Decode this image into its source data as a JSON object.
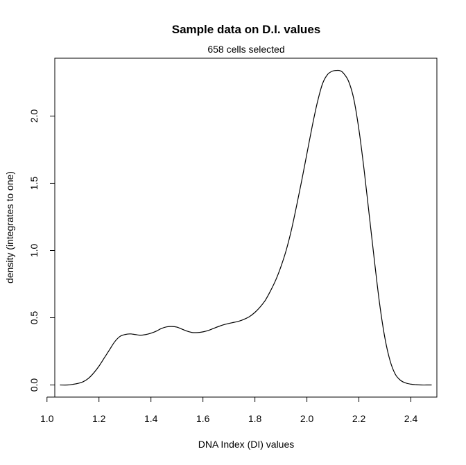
{
  "chart_data": {
    "type": "line",
    "title": "Sample data on D.I. values",
    "subtitle": "658 cells selected",
    "xlabel": "DNA Index (DI) values",
    "ylabel": "density (integrates to one)",
    "xlim": [
      1.03,
      2.5
    ],
    "ylim": [
      -0.09,
      2.43
    ],
    "x_ticks": [
      1.0,
      1.2,
      1.4,
      1.6,
      1.8,
      2.0,
      2.2,
      2.4
    ],
    "x_tick_labels": [
      "1.0",
      "1.2",
      "1.4",
      "1.6",
      "1.8",
      "2.0",
      "2.2",
      "2.4"
    ],
    "y_ticks": [
      0.0,
      0.5,
      1.0,
      1.5,
      2.0
    ],
    "y_tick_labels": [
      "0.0",
      "0.5",
      "1.0",
      "1.5",
      "2.0"
    ],
    "grid": false,
    "series": [
      {
        "x": [
          1.05,
          1.08,
          1.1,
          1.12,
          1.14,
          1.16,
          1.18,
          1.2,
          1.22,
          1.24,
          1.26,
          1.28,
          1.3,
          1.32,
          1.34,
          1.36,
          1.38,
          1.4,
          1.42,
          1.44,
          1.46,
          1.48,
          1.5,
          1.52,
          1.54,
          1.56,
          1.58,
          1.6,
          1.62,
          1.64,
          1.66,
          1.68,
          1.7,
          1.72,
          1.74,
          1.76,
          1.78,
          1.8,
          1.82,
          1.84,
          1.86,
          1.88,
          1.9,
          1.92,
          1.94,
          1.96,
          1.98,
          2.0,
          2.02,
          2.04,
          2.06,
          2.08,
          2.1,
          2.12,
          2.13,
          2.14,
          2.16,
          2.18,
          2.2,
          2.22,
          2.24,
          2.26,
          2.28,
          2.3,
          2.32,
          2.34,
          2.36,
          2.38,
          2.4,
          2.42,
          2.44,
          2.46,
          2.48
        ],
        "y": [
          0.0,
          0.0,
          0.005,
          0.012,
          0.025,
          0.05,
          0.09,
          0.14,
          0.2,
          0.26,
          0.32,
          0.36,
          0.375,
          0.38,
          0.375,
          0.37,
          0.375,
          0.385,
          0.4,
          0.42,
          0.432,
          0.435,
          0.43,
          0.415,
          0.4,
          0.39,
          0.39,
          0.395,
          0.405,
          0.42,
          0.435,
          0.448,
          0.458,
          0.466,
          0.475,
          0.49,
          0.51,
          0.54,
          0.58,
          0.63,
          0.7,
          0.78,
          0.88,
          1.0,
          1.15,
          1.33,
          1.52,
          1.72,
          1.92,
          2.1,
          2.24,
          2.31,
          2.335,
          2.34,
          2.335,
          2.32,
          2.26,
          2.13,
          1.9,
          1.6,
          1.26,
          0.92,
          0.6,
          0.35,
          0.18,
          0.08,
          0.035,
          0.015,
          0.006,
          0.002,
          0.0,
          0.0,
          0.0
        ]
      }
    ]
  }
}
